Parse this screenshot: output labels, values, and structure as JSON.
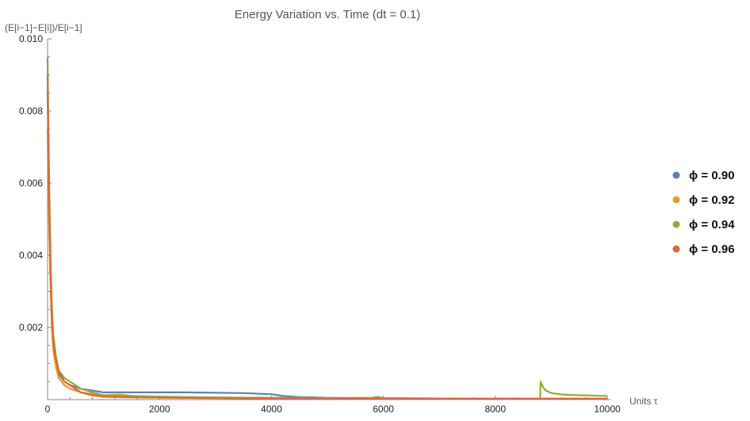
{
  "chart_data": {
    "type": "line",
    "title": "Energy Variation vs. Time (dt = 0.1)",
    "xlabel": "Units τ",
    "ylabel": "(E[i−1]−E[i])/E[i−1]",
    "xlim": [
      0,
      10000
    ],
    "ylim": [
      0,
      0.01
    ],
    "x_ticks": [
      "0",
      "2000",
      "4000",
      "6000",
      "8000",
      "10000"
    ],
    "y_ticks": [
      "0.002",
      "0.004",
      "0.006",
      "0.008",
      "0.010"
    ],
    "x_tick_values": [
      0,
      2000,
      4000,
      6000,
      8000,
      10000
    ],
    "y_tick_values": [
      0.002,
      0.004,
      0.006,
      0.008,
      0.01
    ],
    "grid": false,
    "legend_position": "right",
    "series": [
      {
        "name": "ϕ = 0.90",
        "color": "#5e81b5",
        "x": [
          0,
          20,
          40,
          60,
          80,
          100,
          150,
          200,
          300,
          400,
          500,
          600,
          800,
          1000,
          1200,
          1500,
          2000,
          2500,
          3000,
          3500,
          4000,
          4200,
          4500,
          5000,
          6000,
          7000,
          8000,
          9000,
          10000
        ],
        "y": [
          0.0085,
          0.006,
          0.0042,
          0.003,
          0.002,
          0.0015,
          0.001,
          0.0007,
          0.0005,
          0.0004,
          0.00035,
          0.0003,
          0.00025,
          0.0002,
          0.0002,
          0.0002,
          0.0002,
          0.0002,
          0.00019,
          0.00018,
          0.00015,
          0.0001,
          7e-05,
          5e-05,
          4e-05,
          3e-05,
          3e-05,
          3e-05,
          3e-05
        ]
      },
      {
        "name": "ϕ = 0.92",
        "color": "#e19c24",
        "x": [
          0,
          20,
          40,
          60,
          80,
          100,
          150,
          200,
          300,
          400,
          500,
          600,
          800,
          1000,
          1300,
          1500,
          2000,
          3000,
          4000,
          5000,
          6000,
          7000,
          8000,
          9000,
          10000
        ],
        "y": [
          0.0075,
          0.0055,
          0.004,
          0.0028,
          0.002,
          0.0014,
          0.0009,
          0.0006,
          0.0004,
          0.0003,
          0.00025,
          0.0002,
          0.00015,
          0.00012,
          0.00014,
          0.0001,
          8e-05,
          6e-05,
          5e-05,
          4e-05,
          3e-05,
          3e-05,
          3e-05,
          3e-05,
          3e-05
        ]
      },
      {
        "name": "ϕ = 0.94",
        "color": "#8fb032",
        "x": [
          0,
          20,
          40,
          60,
          80,
          100,
          150,
          200,
          300,
          400,
          500,
          600,
          800,
          1000,
          2000,
          3000,
          4000,
          5000,
          5800,
          5900,
          6000,
          7000,
          8000,
          8800,
          8810,
          8850,
          8900,
          9000,
          9200,
          9500,
          10000
        ],
        "y": [
          0.0095,
          0.007,
          0.005,
          0.0035,
          0.0025,
          0.0018,
          0.0012,
          0.0008,
          0.0006,
          0.0005,
          0.0004,
          0.0003,
          0.0002,
          0.00012,
          8e-05,
          6e-05,
          5e-05,
          4e-05,
          5e-05,
          8e-05,
          4e-05,
          3e-05,
          3e-05,
          3e-05,
          0.0005,
          0.00035,
          0.00025,
          0.00018,
          0.00014,
          0.00012,
          0.0001
        ]
      },
      {
        "name": "ϕ = 0.96",
        "color": "#eb6235",
        "x": [
          0,
          20,
          40,
          60,
          80,
          100,
          150,
          200,
          300,
          400,
          500,
          600,
          800,
          1000,
          1500,
          2000,
          3000,
          4000,
          5000,
          6000,
          7000,
          8000,
          9000,
          10000
        ],
        "y": [
          0.009,
          0.0065,
          0.0045,
          0.0032,
          0.0022,
          0.0016,
          0.0011,
          0.0008,
          0.0005,
          0.0004,
          0.0003,
          0.0002,
          0.00012,
          8e-05,
          6e-05,
          5e-05,
          4e-05,
          3e-05,
          3e-05,
          3e-05,
          2e-05,
          2e-05,
          2e-05,
          2e-05
        ]
      }
    ]
  }
}
